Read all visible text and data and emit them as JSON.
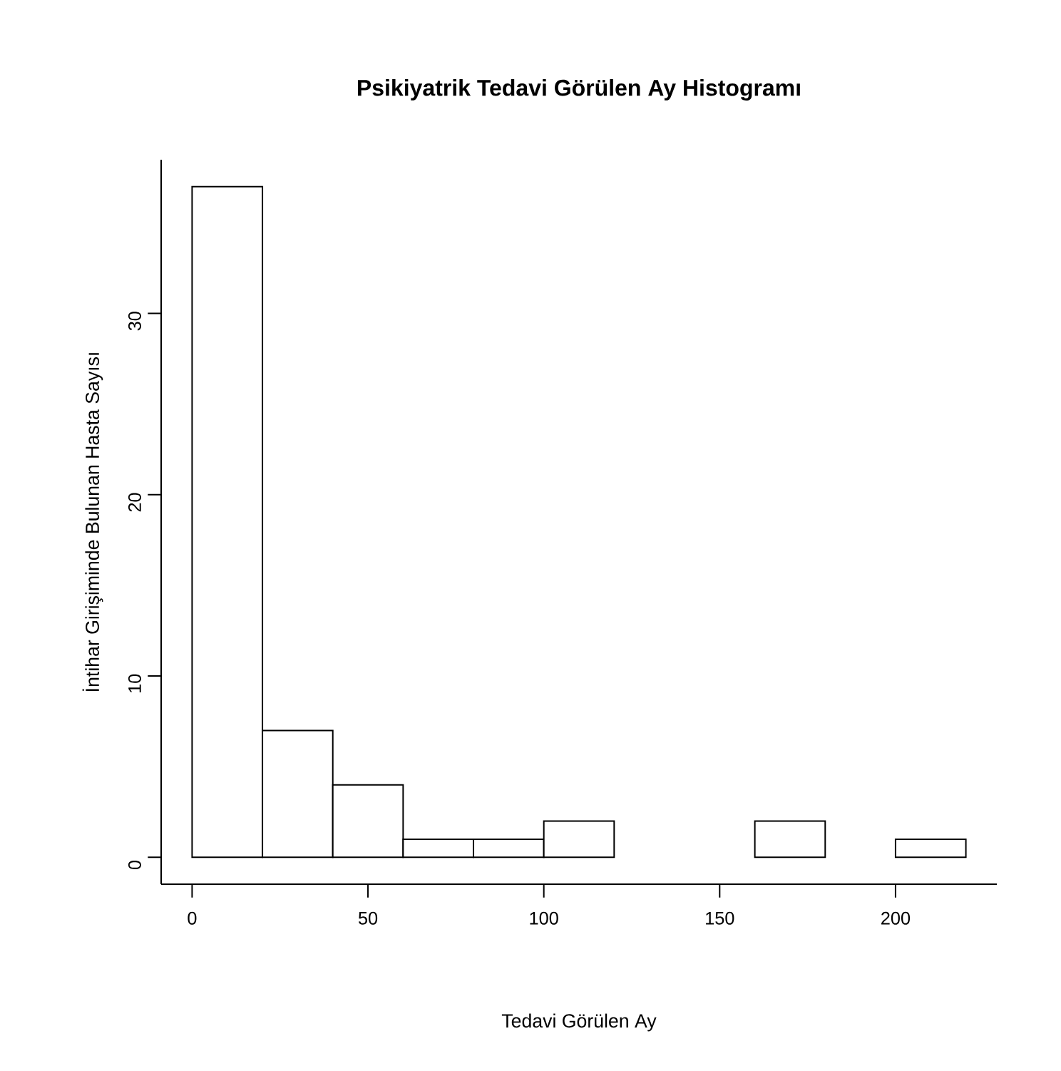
{
  "chart_data": {
    "type": "histogram",
    "title": "Psikiyatrik Tedavi Görülen Ay Histogramı",
    "xlabel": "Tedavi Görülen Ay",
    "ylabel": "İntihar Girişiminde Bulunan Hasta Sayısı",
    "bins": [
      0,
      20,
      40,
      60,
      80,
      100,
      120,
      140,
      160,
      180,
      200,
      220
    ],
    "values": [
      37,
      7,
      4,
      1,
      1,
      2,
      0,
      0,
      2,
      0,
      1
    ],
    "color": "#ffffff",
    "xlim": [
      -8.8,
      228.8
    ],
    "ylim": [
      -1.48,
      38.48
    ],
    "xticks": [
      0,
      50,
      100,
      150,
      200
    ],
    "yticks": [
      0,
      10,
      20,
      30
    ],
    "marker": "none"
  }
}
